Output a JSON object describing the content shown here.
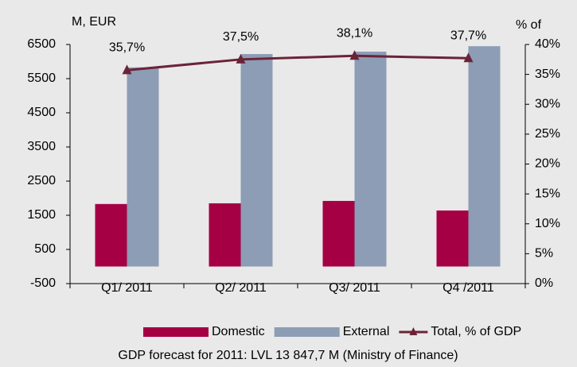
{
  "chart_data": {
    "type": "bar-line",
    "y_label": "M, EUR",
    "y2_label": "% of",
    "categories": [
      "Q1/ 2011",
      "Q2/ 2011",
      "Q3/ 2011",
      "Q4 /2011"
    ],
    "series": [
      {
        "name": "Domestic",
        "color": "#a50044",
        "type": "bar",
        "values": [
          1830,
          1850,
          1920,
          1640
        ]
      },
      {
        "name": "External",
        "color": "#8c9db5",
        "type": "bar",
        "values": [
          5830,
          6220,
          6290,
          6450
        ]
      },
      {
        "name": "Total, % of GDP",
        "color": "#6b2338",
        "type": "line",
        "axis": "y2",
        "values": [
          35.7,
          37.5,
          38.1,
          37.7
        ],
        "value_labels": [
          "35,7%",
          "37,5%",
          "38,1%",
          "37,7%"
        ]
      }
    ],
    "ylim": [
      -500,
      6500
    ],
    "yticks": [
      -500,
      500,
      1500,
      2500,
      3500,
      4500,
      5500,
      6500
    ],
    "y2lim": [
      0,
      40
    ],
    "y2ticks": [
      {
        "value": 0,
        "label": "0%"
      },
      {
        "value": 5,
        "label": "5%"
      },
      {
        "value": 10,
        "label": "10%"
      },
      {
        "value": 15,
        "label": "15%"
      },
      {
        "value": 20,
        "label": "20%"
      },
      {
        "value": 25,
        "label": "25%"
      },
      {
        "value": 30,
        "label": "30%"
      },
      {
        "value": 35,
        "label": "35%"
      },
      {
        "value": 40,
        "label": "40%"
      }
    ],
    "legend": "bottom",
    "footnote": "GDP forecast for 2011: LVL 13 847,7 M (Ministry of Finance)"
  }
}
